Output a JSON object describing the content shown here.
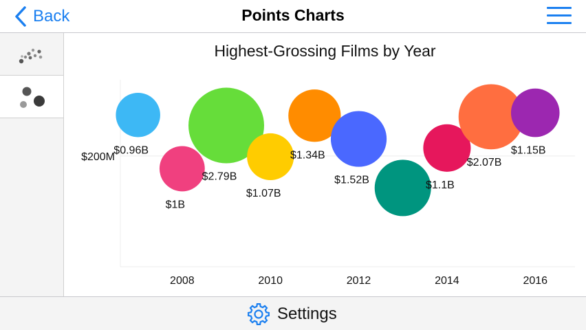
{
  "nav": {
    "back_label": "Back",
    "title": "Points Charts"
  },
  "sidebar": {
    "items": [
      {
        "name": "scatter-points-icon",
        "selected": false
      },
      {
        "name": "bubble-points-icon",
        "selected": true
      }
    ]
  },
  "footer": {
    "settings_label": "Settings"
  },
  "colors": {
    "accent": "#1a7ff0"
  },
  "chart_data": {
    "type": "scatter",
    "title": "Highest-Grossing Films by Year",
    "xlabel": "",
    "ylabel": "",
    "xlim": [
      2006.6,
      2016.9
    ],
    "ylim": [
      -105,
      410
    ],
    "x_ticks": [
      2008,
      2010,
      2012,
      2014,
      2016
    ],
    "x_tick_labels": [
      "2008",
      "2010",
      "2012",
      "2014",
      "2016"
    ],
    "y_ticks": [
      200
    ],
    "y_tick_labels": [
      "$200M"
    ],
    "grid": true,
    "legend": "none",
    "bubbles": [
      {
        "x": 2007,
        "y": 313,
        "size": 0.96,
        "label": "$0.96B",
        "color": "#3db8f5"
      },
      {
        "x": 2008,
        "y": 165,
        "size": 1.0,
        "label": "$1B",
        "color": "#f0407f"
      },
      {
        "x": 2009,
        "y": 284,
        "size": 2.79,
        "label": "$2.79B",
        "color": "#66dd3a"
      },
      {
        "x": 2010,
        "y": 198,
        "size": 1.07,
        "label": "$1.07B",
        "color": "#ffcc00"
      },
      {
        "x": 2011,
        "y": 311,
        "size": 1.34,
        "label": "$1.34B",
        "color": "#ff8c00"
      },
      {
        "x": 2012,
        "y": 247,
        "size": 1.52,
        "label": "$1.52B",
        "color": "#4a68ff"
      },
      {
        "x": 2013,
        "y": 112,
        "size": 1.55,
        "label": "",
        "color": "#00957f"
      },
      {
        "x": 2014,
        "y": 222,
        "size": 1.1,
        "label": "$1.1B",
        "color": "#e6175c"
      },
      {
        "x": 2015,
        "y": 308,
        "size": 2.07,
        "label": "$2.07B",
        "color": "#ff6e40"
      },
      {
        "x": 2016,
        "y": 319,
        "size": 1.15,
        "label": "$1.15B",
        "color": "#9c27b0"
      }
    ]
  }
}
